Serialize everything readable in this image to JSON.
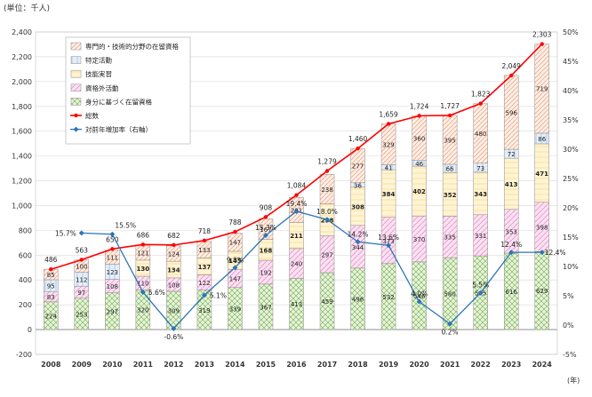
{
  "chart_data": {
    "type": "bar",
    "unit_label": "(単位：千人)",
    "x_unit_label": "(年)",
    "categories": [
      "2008",
      "2009",
      "2010",
      "2011",
      "2012",
      "2013",
      "2014",
      "2015",
      "2016",
      "2017",
      "2018",
      "2019",
      "2020",
      "2021",
      "2022",
      "2023",
      "2024"
    ],
    "ylim": [
      -200,
      2400
    ],
    "y_ticks": [
      -200,
      0,
      200,
      400,
      600,
      800,
      1000,
      1200,
      1400,
      1600,
      1800,
      2000,
      2200,
      2400
    ],
    "y2lim": [
      -5,
      50
    ],
    "y2_ticks": [
      -5,
      0,
      5,
      10,
      15,
      20,
      25,
      30,
      35,
      40,
      45,
      50
    ],
    "stacked_series": [
      {
        "name": "身分に基づく在留資格",
        "color": "#c6e0b4",
        "values": [
          224,
          253,
          297,
          320,
          309,
          319,
          339,
          367,
          413,
          459,
          496,
          532,
          546,
          580,
          595,
          616,
          629
        ]
      },
      {
        "name": "資格外活動",
        "color": "#f4cce8",
        "values": [
          83,
          97,
          108,
          110,
          108,
          122,
          147,
          192,
          240,
          297,
          344,
          373,
          370,
          335,
          331,
          353,
          398
        ]
      },
      {
        "name": "技能実習",
        "color": "#fff2cc",
        "values": [
          null,
          null,
          null,
          130,
          134,
          137,
          145,
          168,
          211,
          258,
          308,
          384,
          402,
          352,
          343,
          413,
          471
        ]
      },
      {
        "name": "特定活動",
        "color": "#ddebf7",
        "values": [
          95,
          112,
          123,
          null,
          null,
          null,
          null,
          null,
          null,
          null,
          36,
          41,
          46,
          66,
          73,
          72,
          86
        ]
      },
      {
        "name": "専門的・技術的分野の在留資格",
        "color": "#fce4d6",
        "values": [
          85,
          100,
          111,
          121,
          124,
          133,
          147,
          167,
          201,
          238,
          277,
          329,
          360,
          395,
          480,
          596,
          719
        ]
      }
    ],
    "total_series": {
      "name": "総数",
      "color": "#ff0000",
      "values": [
        486,
        563,
        650,
        686,
        682,
        718,
        788,
        908,
        1084,
        1279,
        1460,
        1659,
        1724,
        1727,
        1823,
        2049,
        2303
      ]
    },
    "total_labels": [
      "486",
      "563",
      "650",
      "686",
      "682",
      "718",
      "788",
      "908",
      "1,084",
      "1,279",
      "1,460",
      "1,659",
      "1,724",
      "1,727",
      "1,823",
      "2,049",
      "2,303"
    ],
    "growth_series": {
      "name": "対前年増加率（右軸）",
      "color": "#2e75b6",
      "values": [
        null,
        15.7,
        15.5,
        5.6,
        -0.6,
        5.1,
        9.8,
        15.3,
        19.4,
        18.0,
        14.2,
        13.6,
        4.0,
        0.2,
        5.5,
        12.4,
        12.4
      ]
    },
    "legend_order": [
      "専門的・技術的分野の在留資格",
      "特定活動",
      "技能実習",
      "資格外活動",
      "身分に基づく在留資格",
      "総数",
      "対前年増加率（右軸）"
    ]
  }
}
